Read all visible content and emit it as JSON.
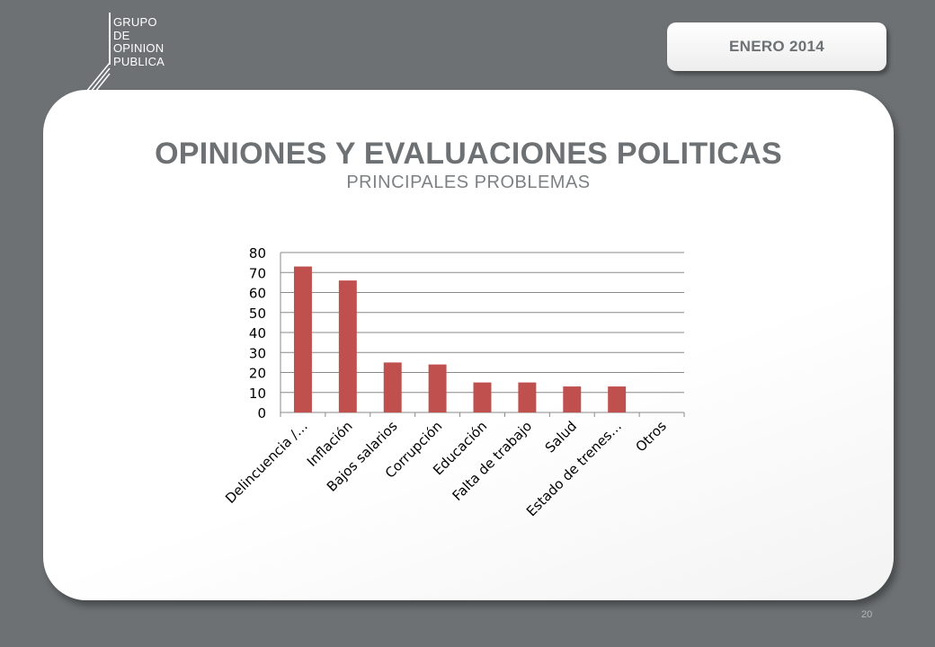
{
  "logo": {
    "lines": [
      "GRUPO",
      "DE",
      "OPINION",
      "PUBLICA"
    ]
  },
  "date_badge": "ENERO 2014",
  "header": {
    "title": "OPINIONES Y EVALUACIONES POLITICAS",
    "subtitle": "PRINCIPALES PROBLEMAS"
  },
  "page_number": "20",
  "colors": {
    "background": "#6d7173",
    "bar": "#c0504d",
    "grid": "#898989",
    "text": "#6d7173"
  },
  "chart_data": {
    "type": "bar",
    "categories": [
      "Delincuencia /…",
      "Inflación",
      "Bajos salarios",
      "Corrupción",
      "Educación",
      "Falta de trabajo",
      "Salud",
      "Estado de trenes…",
      "Otros"
    ],
    "values": [
      73,
      66,
      25,
      24,
      15,
      15,
      13,
      13,
      0
    ],
    "ylim": [
      0,
      80
    ],
    "yticks": [
      0,
      10,
      20,
      30,
      40,
      50,
      60,
      70,
      80
    ],
    "grid": true,
    "legend": "none"
  }
}
